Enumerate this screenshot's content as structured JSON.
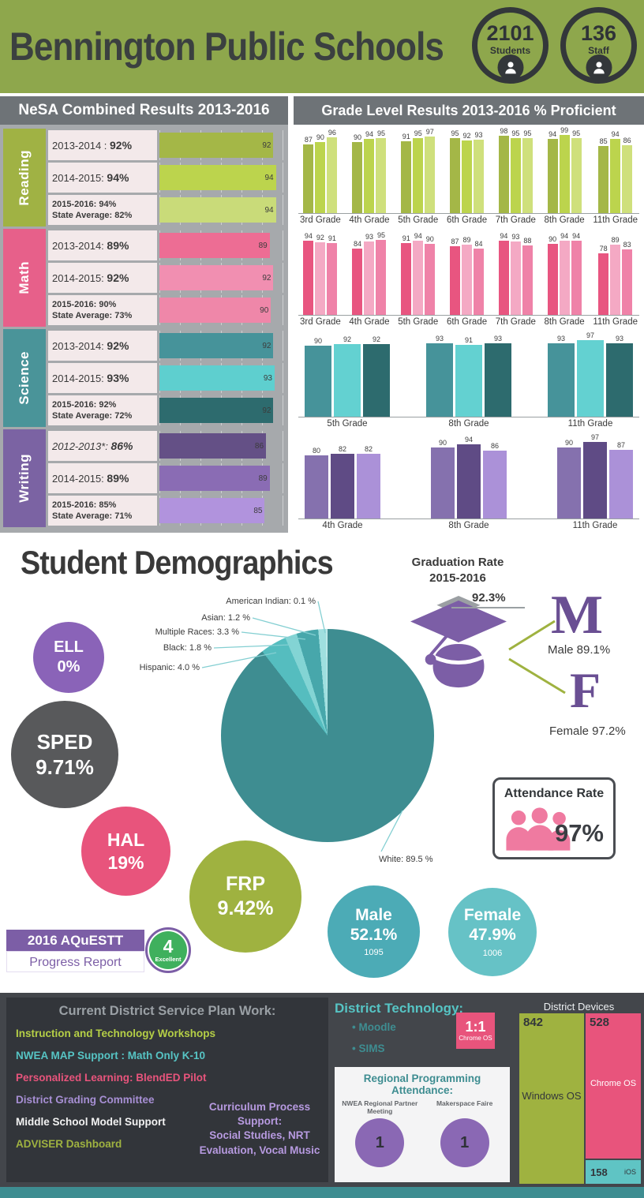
{
  "header": {
    "title": "Bennington Public Schools",
    "bg": "#8ea74c",
    "badges": [
      {
        "value": "2101",
        "label": "Students"
      },
      {
        "value": "136",
        "label": "Staff"
      }
    ]
  },
  "panels": {
    "nesa_title": "NeSA Combined Results 2013-2016",
    "grade_title": "Grade Level Results 2013-2016  % Proficient"
  },
  "chart_data": [
    {
      "id": "nesa-combined",
      "type": "bar",
      "orientation": "horizontal",
      "title": "NeSA Combined Results 2013-2016",
      "xlim": [
        0,
        100
      ],
      "groups": [
        {
          "subject": "Reading",
          "subject_color": "#a0b244",
          "rows": [
            {
              "line1": "2013-2014 :",
              "pct": "92%",
              "value": 92,
              "color": "#a4b747"
            },
            {
              "line1": "2014-2015:",
              "pct": "94%",
              "value": 94,
              "color": "#bcd44d"
            },
            {
              "line1": "2015-2016: 94%",
              "line2": "State Average: 82%",
              "value": 94,
              "color": "#c9db79"
            }
          ]
        },
        {
          "subject": "Math",
          "subject_color": "#e7608a",
          "rows": [
            {
              "line1": "2013-2014:",
              "pct": "89%",
              "value": 89,
              "color": "#ed6d94"
            },
            {
              "line1": "2014-2015:",
              "pct": "92%",
              "value": 92,
              "color": "#f18fb1"
            },
            {
              "line1": "2015-2016: 90%",
              "line2": "State Average: 73%",
              "value": 90,
              "color": "#ef87a9"
            }
          ]
        },
        {
          "subject": "Science",
          "subject_color": "#4a9499",
          "rows": [
            {
              "line1": "2013-2014:",
              "pct": "92%",
              "value": 92,
              "color": "#46939a"
            },
            {
              "line1": "2014-2015:",
              "pct": "93%",
              "value": 93,
              "color": "#5ecfcf"
            },
            {
              "line1": "2015-2016: 92%",
              "line2": "State Average: 72%",
              "value": 92,
              "color": "#2d6b6e"
            }
          ]
        },
        {
          "subject": "Writing",
          "subject_color": "#7b63a3",
          "rows": [
            {
              "line1": "2012-2013*:",
              "pct": "86%",
              "value": 86,
              "color": "#645086",
              "italic": true
            },
            {
              "line1": "2014-2015:",
              "pct": "89%",
              "value": 89,
              "color": "#8a6cb4"
            },
            {
              "line1": "2015-2016: 85%",
              "line2": "State Average: 71%",
              "value": 85,
              "color": "#b193dd"
            }
          ]
        }
      ]
    },
    {
      "id": "reading-grades",
      "type": "bar",
      "subject": "Reading",
      "ylim": [
        0,
        100
      ],
      "categories": [
        "3rd Grade",
        "4th Grade",
        "5th Grade",
        "6th Grade",
        "7th Grade",
        "8th Grade",
        "11th Grade"
      ],
      "series": [
        {
          "name": "2013-2014",
          "color": "#a4b747",
          "values": [
            87,
            90,
            91,
            95,
            98,
            94,
            85
          ]
        },
        {
          "name": "2014-2015",
          "color": "#bcd44d",
          "values": [
            90,
            94,
            95,
            92,
            95,
            99,
            94
          ]
        },
        {
          "name": "2015-2016",
          "color": "#cfe07c",
          "values": [
            96,
            95,
            97,
            93,
            95,
            95,
            86
          ]
        }
      ]
    },
    {
      "id": "math-grades",
      "type": "bar",
      "subject": "Math",
      "ylim": [
        0,
        100
      ],
      "categories": [
        "3rd Grade",
        "4th Grade",
        "5th Grade",
        "6th Grade",
        "7th Grade",
        "8th Grade",
        "11th Grade"
      ],
      "series": [
        {
          "name": "2013-2014",
          "color": "#e85580",
          "values": [
            94,
            84,
            91,
            87,
            94,
            90,
            78
          ]
        },
        {
          "name": "2014-2015",
          "color": "#f4a9c4",
          "values": [
            92,
            93,
            94,
            89,
            93,
            94,
            89
          ]
        },
        {
          "name": "2015-2016",
          "color": "#ef82a8",
          "values": [
            91,
            95,
            90,
            84,
            88,
            94,
            83
          ]
        }
      ]
    },
    {
      "id": "science-grades",
      "type": "bar",
      "subject": "Science",
      "ylim": [
        0,
        100
      ],
      "categories": [
        "5th Grade",
        "8th Grade",
        "11th Grade"
      ],
      "series": [
        {
          "name": "2013-2014",
          "color": "#46939a",
          "values": [
            90,
            93,
            93
          ]
        },
        {
          "name": "2014-2015",
          "color": "#63d1d1",
          "values": [
            92,
            91,
            97
          ]
        },
        {
          "name": "2015-2016",
          "color": "#2d6b6e",
          "values": [
            92,
            93,
            93
          ]
        }
      ]
    },
    {
      "id": "writing-grades",
      "type": "bar",
      "subject": "Writing",
      "ylim": [
        0,
        100
      ],
      "categories": [
        "4th Grade",
        "8th Grade",
        "11th Grade"
      ],
      "series": [
        {
          "name": "2013-2014",
          "color": "#8571ae",
          "values": [
            80,
            90,
            90
          ]
        },
        {
          "name": "2014-2015",
          "color": "#5f4b85",
          "values": [
            82,
            94,
            97
          ]
        },
        {
          "name": "2015-2016",
          "color": "#ab91d8",
          "values": [
            82,
            86,
            87
          ]
        }
      ]
    },
    {
      "id": "ethnicity-pie",
      "type": "pie",
      "title": "Student Demographics",
      "slices": [
        {
          "label": "White",
          "pct": 89.5,
          "color": "#3e8d91"
        },
        {
          "label": "Hispanic",
          "pct": 4.0,
          "color": "#55bdbf"
        },
        {
          "label": "Black",
          "pct": 1.8,
          "color": "#83d4d4"
        },
        {
          "label": "Multiple Races",
          "pct": 3.3,
          "color": "#47a7ab"
        },
        {
          "label": "Asian",
          "pct": 1.2,
          "color": "#9fdfdf"
        },
        {
          "label": "American Indian",
          "pct": 0.1,
          "color": "#c9eded"
        }
      ]
    }
  ],
  "demographics": {
    "title": "Student Demographics",
    "pie_callouts": [
      "American Indian: 0.1 %",
      "Asian: 1.2 %",
      "Multiple Races: 3.3 %",
      "Black: 1.8 %",
      "Hispanic: 4.0 %",
      "White: 89.5 %"
    ],
    "bubbles": [
      {
        "name": "ELL",
        "value": "0%",
        "color": "#8a63b8"
      },
      {
        "name": "SPED",
        "value": "9.71%",
        "color": "#58595b"
      },
      {
        "name": "HAL",
        "value": "19%",
        "color": "#e8547c"
      },
      {
        "name": "FRP",
        "value": "9.42%",
        "color": "#9fb240"
      }
    ],
    "graduation": {
      "title_line1": "Graduation Rate",
      "title_line2": "2015-2016",
      "rate": "92.3%",
      "male_letter": "M",
      "male_label": "Male 89.1%",
      "female_letter": "F",
      "female_label": "Female 97.2%"
    },
    "attendance": {
      "title": "Attendance Rate",
      "value": "97%"
    },
    "gender_circles": [
      {
        "name": "Male",
        "pct": "52.1%",
        "count": "1095",
        "color": "#4cabb6"
      },
      {
        "name": "Female",
        "pct": "47.9%",
        "count": "1006",
        "color": "#66c2c6"
      }
    ],
    "aquestt": {
      "line1": "2016 AQuESTT",
      "line2": "Progress Report",
      "score": "4",
      "rating": "Excellent",
      "score_color": "#3fb05d"
    }
  },
  "bottom": {
    "service_plan": {
      "title": "Current District Service Plan Work:",
      "items": [
        {
          "text": "Instruction and Technology Workshops",
          "color": "#b5cf46"
        },
        {
          "text": "NWEA MAP Support : Math Only K-10",
          "color": "#56c4c4"
        },
        {
          "text": "Personalized Learning: BlendED Pilot",
          "color": "#e8547c"
        },
        {
          "text": "District Grading Committee",
          "color": "#a78fd4"
        },
        {
          "text": "Middle School Model Support",
          "color": "#f2f2f2"
        },
        {
          "text": "ADVISER Dashboard",
          "color": "#9fb240"
        }
      ],
      "side_note": "Curriculum Process\nSupport:\nSocial Studies, NRT\nEvaluation, Vocal Music"
    },
    "technology": {
      "title": "District Technology:",
      "bullets": [
        "Moodle",
        "SIMS"
      ],
      "badge_big": "1:1",
      "badge_small": "Chrome OS",
      "badge_color": "#e8547c"
    },
    "devices": {
      "title": "District Devices",
      "blocks": [
        {
          "os": "Windows OS",
          "count": "842",
          "color": "#9fb240"
        },
        {
          "os": "Chrome OS",
          "count": "528",
          "color": "#e8547c"
        },
        {
          "os": "iOS",
          "count": "158",
          "color": "#5fc4c4"
        }
      ]
    },
    "regional": {
      "title": "Regional Programming Attendance:",
      "events": [
        {
          "name": "NWEA Regional Partner Meeting",
          "count": "1"
        },
        {
          "name": "Makerspace Faire",
          "count": "1"
        }
      ]
    }
  }
}
